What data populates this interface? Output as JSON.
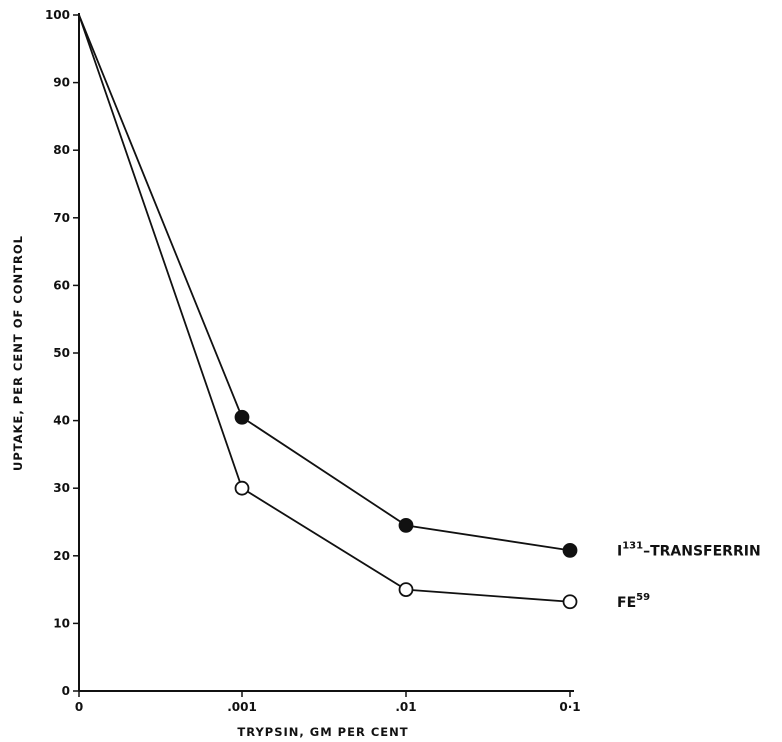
{
  "chart_data": {
    "type": "line",
    "xlabel": "TRYPSIN, GM PER CENT",
    "ylabel": "UPTAKE, PER CENT OF CONTROL",
    "x_tick_labels": [
      "0",
      ".001",
      ".01",
      "0·1"
    ],
    "y_ticks": [
      0,
      10,
      20,
      30,
      40,
      50,
      60,
      70,
      80,
      90,
      100
    ],
    "ylim": [
      0,
      100
    ],
    "grid": false,
    "legend": "inline-right",
    "series": [
      {
        "name_main": "I",
        "name_sup": "131",
        "name_rest": "–TRANSFERRIN",
        "marker": "filled-circle",
        "values": [
          100,
          40.5,
          24.5,
          20.8
        ]
      },
      {
        "name_main": "FE",
        "name_sup": "59",
        "name_rest": "",
        "marker": "open-circle",
        "values": [
          100,
          30,
          15,
          13.2
        ]
      }
    ]
  }
}
